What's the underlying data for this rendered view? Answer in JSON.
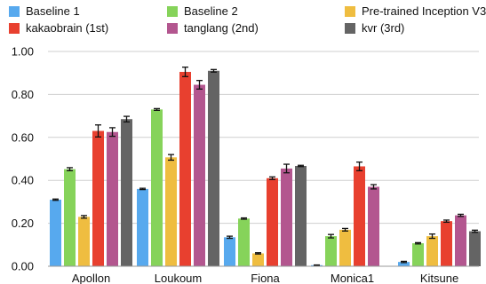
{
  "chart_data": {
    "type": "bar",
    "title": "",
    "xlabel": "",
    "ylabel": "",
    "ylim": [
      0,
      1
    ],
    "yticks": [
      "0.00",
      "0.20",
      "0.40",
      "0.60",
      "0.80",
      "1.00"
    ],
    "grid": "horizontal",
    "legend_position": "top",
    "categories": [
      "Apollon",
      "Loukoum",
      "Fiona",
      "Monica1",
      "Kitsune"
    ],
    "series": [
      {
        "name": "Baseline 1",
        "color": "#57a9ee",
        "values": [
          0.31,
          0.36,
          0.135,
          0.005,
          0.02
        ],
        "errors": [
          0.003,
          0.003,
          0.005,
          0.001,
          0.003
        ]
      },
      {
        "name": "kakaobrain (1st)",
        "color": "#e8402f",
        "values": [
          0.63,
          0.905,
          0.41,
          0.465,
          0.21
        ],
        "errors": [
          0.028,
          0.022,
          0.006,
          0.02,
          0.005
        ]
      },
      {
        "name": "Baseline 2",
        "color": "#86d35a",
        "values": [
          0.452,
          0.73,
          0.222,
          0.14,
          0.107
        ],
        "errors": [
          0.007,
          0.004,
          0.003,
          0.008,
          0.003
        ]
      },
      {
        "name": "tanglang (2nd)",
        "color": "#b3568f",
        "values": [
          0.625,
          0.845,
          0.455,
          0.37,
          0.237
        ],
        "errors": [
          0.02,
          0.02,
          0.02,
          0.01,
          0.005
        ]
      },
      {
        "name": "Pre-trained Inception V3",
        "color": "#efbd40",
        "values": [
          0.23,
          0.507,
          0.06,
          0.17,
          0.14
        ],
        "errors": [
          0.006,
          0.013,
          0.003,
          0.006,
          0.01
        ]
      },
      {
        "name": "kvr (3rd)",
        "color": "#646464",
        "values": [
          0.685,
          0.91,
          0.467,
          null,
          0.163
        ],
        "errors": [
          0.013,
          0.006,
          0.003,
          null,
          0.005
        ]
      }
    ],
    "bar_order": [
      "Baseline 1",
      "Baseline 2",
      "Pre-trained Inception V3",
      "kakaobrain (1st)",
      "tanglang (2nd)",
      "kvr (3rd)"
    ]
  }
}
